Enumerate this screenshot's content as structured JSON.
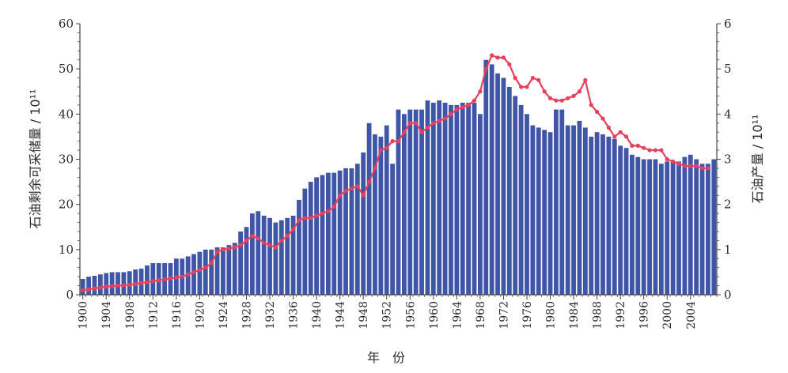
{
  "chart_data": {
    "type": "bar+line",
    "xlabel": "年　份",
    "ylabel_left": "石油剩余可采储量 / 10¹¹",
    "ylabel_right": "石油产量 / 10¹¹",
    "ylim_left": [
      0,
      60
    ],
    "ylim_right": [
      0,
      6
    ],
    "yticks_left": [
      "0",
      "10",
      "20",
      "30",
      "40",
      "50",
      "60"
    ],
    "yticks_right": [
      "0",
      "1",
      "2",
      "3",
      "4",
      "5",
      "6"
    ],
    "xticks": [
      "1900",
      "1904",
      "1908",
      "1912",
      "1916",
      "1920",
      "1924",
      "1928",
      "1932",
      "1936",
      "1940",
      "1944",
      "1948",
      "1952",
      "1956",
      "1960",
      "1964",
      "1968",
      "1972",
      "1976",
      "1980",
      "1984",
      "1988",
      "1992",
      "1996",
      "2000",
      "2004"
    ],
    "x_start": 1900,
    "x_end": 2005,
    "bar_color": "#3f55a6",
    "line_color": "#e8405c",
    "series": [
      {
        "axis": "left",
        "type": "bar",
        "values": [
          3.5,
          4,
          4.2,
          4.5,
          4.8,
          5,
          5,
          5,
          5.2,
          5.6,
          5.8,
          6.5,
          7,
          7,
          7,
          7,
          8,
          8,
          8.5,
          9,
          9.5,
          10,
          10,
          10.5,
          10.5,
          11,
          11.5,
          14,
          15,
          18,
          18.5,
          17.5,
          17,
          16,
          16.5,
          17,
          17.5,
          21,
          23.5,
          25,
          26,
          26.5,
          27,
          27,
          27.5,
          28,
          28,
          29,
          31.5,
          38,
          35.5,
          35,
          37.5,
          29,
          41,
          40,
          41,
          41,
          41,
          43,
          42.5,
          43,
          42.5,
          42,
          42,
          42.5,
          42.5,
          42.5,
          40,
          52,
          51,
          49,
          48,
          46,
          44,
          42,
          40,
          37.5,
          37,
          36.5,
          36,
          41,
          41,
          37.5,
          37.5,
          38.5,
          37,
          35,
          36,
          35.5,
          35,
          34.5,
          33,
          32.5,
          31,
          30.5,
          30,
          30,
          30,
          29,
          29.5,
          29.5,
          29.5,
          30.5,
          31,
          30,
          29,
          29,
          30
        ]
      },
      {
        "axis": "right",
        "type": "line",
        "values": [
          0.1,
          0.12,
          0.14,
          0.16,
          0.18,
          0.19,
          0.2,
          0.21,
          0.22,
          0.24,
          0.26,
          0.28,
          0.3,
          0.32,
          0.34,
          0.36,
          0.38,
          0.4,
          0.45,
          0.5,
          0.55,
          0.6,
          0.7,
          0.95,
          1.0,
          1.02,
          1.05,
          1.1,
          1.2,
          1.3,
          1.25,
          1.15,
          1.1,
          1.05,
          1.2,
          1.3,
          1.45,
          1.65,
          1.7,
          1.7,
          1.75,
          1.8,
          1.85,
          1.95,
          2.2,
          2.3,
          2.35,
          2.4,
          2.2,
          2.5,
          2.8,
          3.2,
          3.25,
          3.4,
          3.4,
          3.6,
          3.8,
          3.8,
          3.6,
          3.7,
          3.8,
          3.85,
          3.9,
          4.0,
          4.1,
          4.15,
          4.2,
          4.3,
          4.5,
          5.0,
          5.3,
          5.25,
          5.25,
          5.1,
          4.8,
          4.6,
          4.6,
          4.8,
          4.75,
          4.5,
          4.35,
          4.3,
          4.3,
          4.35,
          4.4,
          4.5,
          4.75,
          4.2,
          4.05,
          3.9,
          3.7,
          3.5,
          3.6,
          3.5,
          3.3,
          3.3,
          3.25,
          3.2,
          3.2,
          3.2,
          3.0,
          2.95,
          2.9,
          2.85,
          2.85,
          2.85,
          2.8,
          2.8
        ]
      }
    ],
    "grid": false,
    "legend": "none"
  }
}
